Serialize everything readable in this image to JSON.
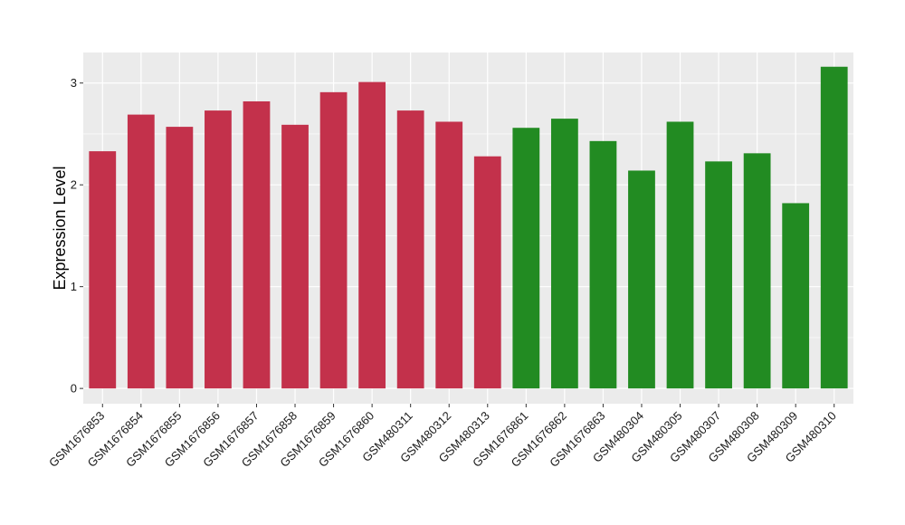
{
  "chart_data": {
    "type": "bar",
    "title": "",
    "xlabel": "",
    "ylabel": "Expression Level",
    "ylim": [
      -0.15,
      3.3
    ],
    "yticks": [
      0,
      1,
      2,
      3
    ],
    "grid": true,
    "legend": "none",
    "colors": {
      "group_a": "#C3314B",
      "group_b": "#228B22",
      "panel": "#EBEBEB",
      "grid": "#FFFFFF"
    },
    "categories": [
      "GSM1676853",
      "GSM1676854",
      "GSM1676855",
      "GSM1676856",
      "GSM1676857",
      "GSM1676858",
      "GSM1676859",
      "GSM1676860",
      "GSM480311",
      "GSM480312",
      "GSM480313",
      "GSM1676861",
      "GSM1676862",
      "GSM1676863",
      "GSM480304",
      "GSM480305",
      "GSM480307",
      "GSM480308",
      "GSM480309",
      "GSM480310"
    ],
    "values": [
      2.33,
      2.69,
      2.57,
      2.73,
      2.82,
      2.59,
      2.91,
      3.01,
      2.73,
      2.62,
      2.28,
      2.56,
      2.65,
      2.43,
      2.14,
      2.62,
      2.23,
      2.31,
      1.82,
      3.16
    ],
    "groups": [
      "a",
      "a",
      "a",
      "a",
      "a",
      "a",
      "a",
      "a",
      "a",
      "a",
      "a",
      "b",
      "b",
      "b",
      "b",
      "b",
      "b",
      "b",
      "b",
      "b"
    ]
  }
}
